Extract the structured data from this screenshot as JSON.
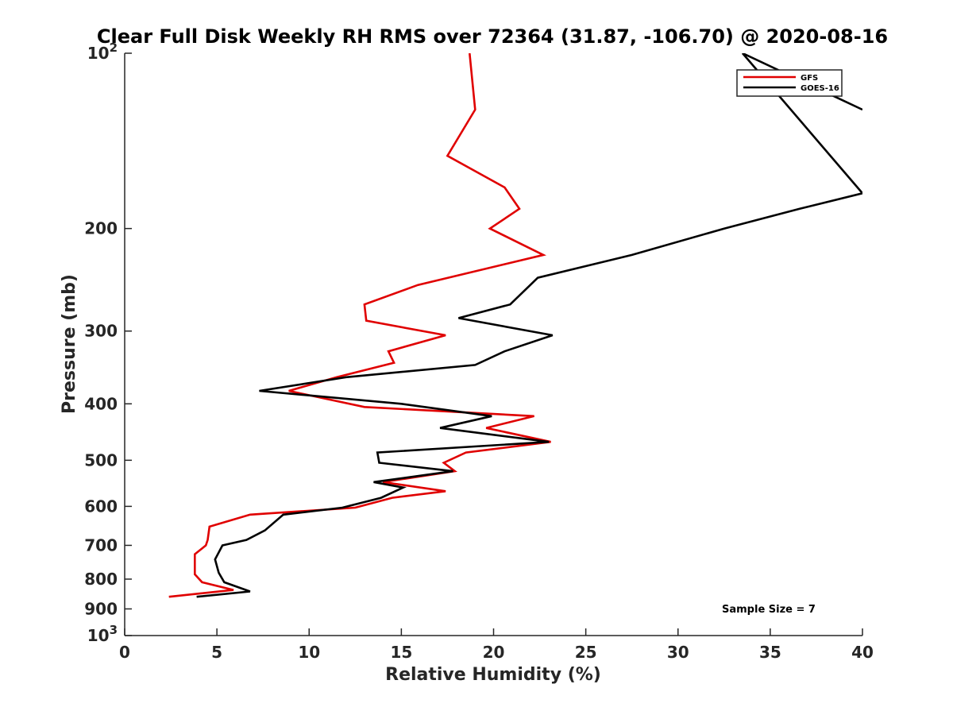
{
  "chart_data": {
    "type": "line",
    "title": "Clear Full Disk Weekly RH RMS over 72364 (31.87, -106.70) @ 2020-08-16",
    "xlabel": "Relative Humidity (%)",
    "ylabel": "Pressure (mb)",
    "xlim": [
      0,
      40
    ],
    "ylim": [
      100,
      1000
    ],
    "y_scale": "log",
    "y_reversed": true,
    "grid": false,
    "legend_position": "top-right",
    "x_ticks": [
      "0",
      "5",
      "10",
      "15",
      "20",
      "25",
      "30",
      "35",
      "40"
    ],
    "y_ticks": [
      {
        "value": 100,
        "base": "10",
        "exp": "2"
      },
      {
        "value": 200,
        "label": "200"
      },
      {
        "value": 300,
        "label": "300"
      },
      {
        "value": 400,
        "label": "400"
      },
      {
        "value": 500,
        "label": "500"
      },
      {
        "value": 600,
        "label": "600"
      },
      {
        "value": 700,
        "label": "700"
      },
      {
        "value": 800,
        "label": "800"
      },
      {
        "value": 900,
        "label": "900"
      },
      {
        "value": 1000,
        "base": "10",
        "exp": "3"
      }
    ],
    "annotation": "Sample Size = 7",
    "series": [
      {
        "name": "GFS",
        "color": "#e00000",
        "points": [
          [
            18.7,
            100
          ],
          [
            19.0,
            125
          ],
          [
            17.5,
            150
          ],
          [
            20.6,
            170
          ],
          [
            21.4,
            185
          ],
          [
            19.8,
            200
          ],
          [
            22.7,
            222
          ],
          [
            15.9,
            250
          ],
          [
            13.0,
            270
          ],
          [
            13.1,
            288
          ],
          [
            17.4,
            305
          ],
          [
            14.3,
            325
          ],
          [
            14.6,
            340
          ],
          [
            11.5,
            360
          ],
          [
            8.9,
            380
          ],
          [
            13.0,
            405
          ],
          [
            22.2,
            420
          ],
          [
            19.6,
            440
          ],
          [
            23.1,
            465
          ],
          [
            18.5,
            485
          ],
          [
            17.3,
            505
          ],
          [
            17.9,
            522
          ],
          [
            14.0,
            545
          ],
          [
            17.4,
            565
          ],
          [
            14.5,
            580
          ],
          [
            12.5,
            603
          ],
          [
            6.8,
            620
          ],
          [
            4.6,
            650
          ],
          [
            4.5,
            685
          ],
          [
            4.4,
            700
          ],
          [
            3.8,
            725
          ],
          [
            3.8,
            785
          ],
          [
            4.2,
            810
          ],
          [
            5.9,
            835
          ],
          [
            2.4,
            858
          ]
        ]
      },
      {
        "name": "GOES-16",
        "color": "#000000",
        "points": [
          [
            40.0,
            125
          ],
          [
            33.5,
            100
          ],
          [
            40.0,
            174
          ],
          [
            36.6,
            185
          ],
          [
            32.5,
            200
          ],
          [
            27.5,
            222
          ],
          [
            22.4,
            243
          ],
          [
            20.9,
            270
          ],
          [
            18.1,
            285
          ],
          [
            23.2,
            305
          ],
          [
            20.6,
            325
          ],
          [
            19.0,
            343
          ],
          [
            12.0,
            360
          ],
          [
            7.3,
            380
          ],
          [
            15.0,
            400
          ],
          [
            19.9,
            420
          ],
          [
            17.1,
            440
          ],
          [
            23.0,
            465
          ],
          [
            13.7,
            485
          ],
          [
            13.8,
            505
          ],
          [
            17.8,
            522
          ],
          [
            13.5,
            545
          ],
          [
            15.1,
            557
          ],
          [
            13.9,
            580
          ],
          [
            11.8,
            603
          ],
          [
            8.6,
            620
          ],
          [
            7.6,
            660
          ],
          [
            6.6,
            685
          ],
          [
            5.3,
            700
          ],
          [
            4.9,
            740
          ],
          [
            5.1,
            780
          ],
          [
            5.4,
            810
          ],
          [
            6.8,
            840
          ],
          [
            3.9,
            858
          ]
        ]
      }
    ]
  }
}
